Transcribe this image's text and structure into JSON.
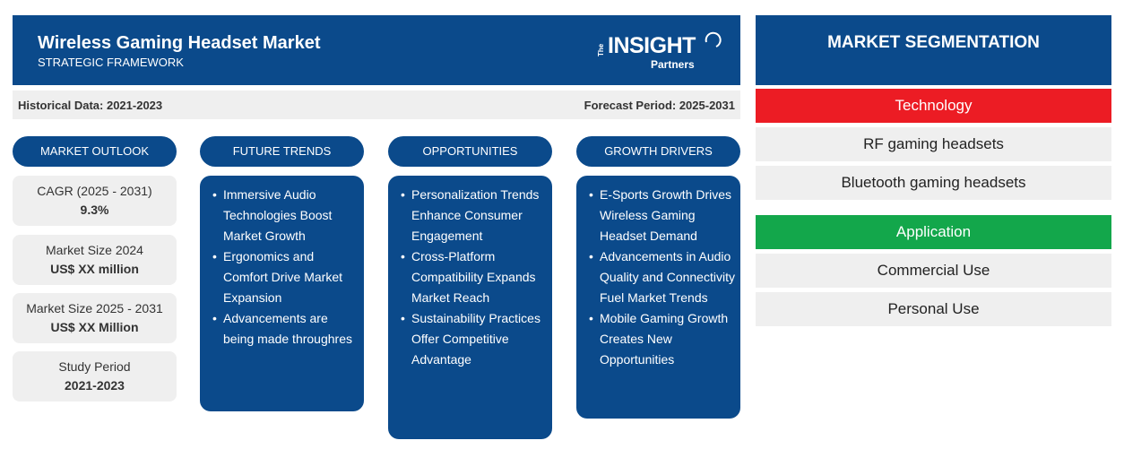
{
  "header": {
    "title": "Wireless Gaming Headset Market",
    "subtitle": "STRATEGIC FRAMEWORK",
    "logo": {
      "the": "The",
      "insight": "INSIGHT",
      "partners": "Partners"
    }
  },
  "periods": {
    "historical": "Historical Data: 2021-2023",
    "forecast": "Forecast Period: 2025-2031"
  },
  "columns": {
    "market_outlook": "MARKET OUTLOOK",
    "future_trends": "FUTURE TRENDS",
    "opportunities": "OPPORTUNITIES",
    "growth_drivers": "GROWTH DRIVERS"
  },
  "outlook": [
    {
      "label": "CAGR (2025 - 2031)",
      "value": "9.3%"
    },
    {
      "label": "Market Size 2024",
      "value": "US$ XX million"
    },
    {
      "label": "Market Size 2025 - 2031",
      "value": "US$ XX Million"
    },
    {
      "label": "Study Period",
      "value": "2021-2023"
    }
  ],
  "future_trends": [
    "Immersive Audio Technologies Boost Market Growth",
    "Ergonomics and Comfort Drive Market Expansion",
    "Advancements are being made throughres"
  ],
  "opportunities": [
    "Personalization Trends Enhance Consumer Engagement",
    "Cross-Platform Compatibility Expands Market Reach",
    "Sustainability Practices Offer Competitive Advantage"
  ],
  "growth_drivers": [
    "E-Sports Growth Drives Wireless Gaming Headset Demand",
    "Advancements in Audio Quality and Connectivity Fuel Market Trends",
    "Mobile Gaming Growth Creates New Opportunities"
  ],
  "segmentation": {
    "title": "MARKET SEGMENTATION",
    "technology": {
      "label": "Technology",
      "color": "#ec1c24",
      "items": [
        "RF gaming headsets",
        "Bluetooth gaming headsets"
      ]
    },
    "application": {
      "label": "Application",
      "color": "#13a74b",
      "items": [
        "Commercial Use",
        "Personal Use"
      ]
    }
  },
  "colors": {
    "primary": "#0b4a8b",
    "panel": "#efefef"
  }
}
